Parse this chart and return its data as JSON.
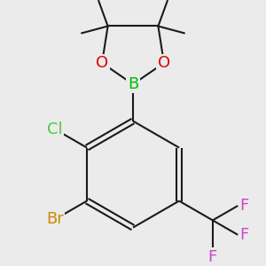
{
  "bg_color": "#ebebeb",
  "bond_color": "#1a1a1a",
  "bond_width": 1.5,
  "atom_colors": {
    "B": "#00bb00",
    "O": "#dd0000",
    "Cl": "#44cc44",
    "Br": "#cc8800",
    "F": "#cc44cc",
    "C": "#1a1a1a"
  },
  "font_size_atom": 13,
  "font_size_methyl": 9,
  "scale": 1.0
}
